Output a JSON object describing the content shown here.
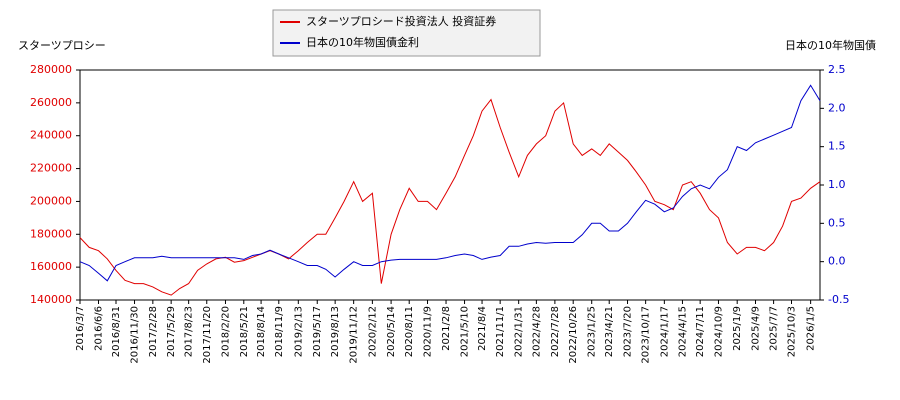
{
  "chart_data": {
    "type": "line",
    "y_label": "スターツプロシー",
    "y2_label": "日本の10年物国債",
    "x": [
      "2016/3/7",
      "2016/4/21",
      "2016/6/6",
      "2016/7/19",
      "2016/8/31",
      "2016/10/14",
      "2016/11/30",
      "2017/1/13",
      "2017/2/28",
      "2017/4/13",
      "2017/5/29",
      "2017/7/10",
      "2017/8/23",
      "2017/10/6",
      "2017/11/20",
      "2018/1/4",
      "2018/2/20",
      "2018/4/5",
      "2018/5/21",
      "2018/7/3",
      "2018/8/14",
      "2018/9/27",
      "2018/11/9",
      "2018/12/27",
      "2019/2/13",
      "2019/3/29",
      "2019/5/17",
      "2019/6/28",
      "2019/8/13",
      "2019/9/26",
      "2019/11/12",
      "2019/12/26",
      "2020/2/12",
      "2020/3/27",
      "2020/5/14",
      "2020/6/26",
      "2020/8/11",
      "2020/9/24",
      "2020/11/9",
      "2020/12/23",
      "2021/2/8",
      "2021/3/25",
      "2021/5/10",
      "2021/6/22",
      "2021/8/4",
      "2021/9/17",
      "2021/11/1",
      "2021/12/15",
      "2022/1/31",
      "2022/3/15",
      "2022/4/28",
      "2022/6/13",
      "2022/7/28",
      "2022/9/9",
      "2022/10/26",
      "2022/12/9",
      "2023/1/25",
      "2023/3/8",
      "2023/4/21",
      "2023/6/5",
      "2023/7/20",
      "2023/9/1",
      "2023/10/17",
      "2023/12/1",
      "2024/1/17",
      "2024/3/1",
      "2024/4/15",
      "2024/5/28",
      "2024/7/11",
      "2024/8/26",
      "2024/10/9",
      "2024/11/22",
      "2025/1/9",
      "2025/2/24",
      "2025/4/9",
      "2025/5/23",
      "2025/7/7",
      "2025/8/20",
      "2025/10/3",
      "2025/11/18",
      "2026/1/5",
      "2026/2/20"
    ],
    "series": [
      {
        "name": "スターツプロシード投資法人 投資証券",
        "color": "#e00000",
        "values": [
          178000,
          172000,
          170000,
          165000,
          158000,
          152000,
          150000,
          150000,
          148000,
          145000,
          143000,
          147000,
          150000,
          158000,
          162000,
          165000,
          166000,
          163000,
          164000,
          166000,
          168000,
          170000,
          168000,
          165000,
          170000,
          175000,
          180000,
          180000,
          190000,
          200000,
          212000,
          200000,
          205000,
          150000,
          180000,
          195000,
          208000,
          200000,
          200000,
          195000,
          205000,
          215000,
          228000,
          240000,
          255000,
          262000,
          245000,
          230000,
          215000,
          228000,
          235000,
          240000,
          255000,
          260000,
          235000,
          228000,
          232000,
          228000,
          235000,
          230000,
          225000,
          218000,
          210000,
          200000,
          198000,
          195000,
          210000,
          212000,
          205000,
          195000,
          190000,
          175000,
          168000,
          172000,
          172000,
          170000,
          175000,
          185000,
          200000,
          202000,
          208000,
          212000
        ]
      },
      {
        "name": "日本の10年物国債金利",
        "color": "#0000cc",
        "axis": "y2",
        "values": [
          0.0,
          -0.05,
          -0.15,
          -0.25,
          -0.05,
          0.0,
          0.05,
          0.05,
          0.05,
          0.07,
          0.05,
          0.05,
          0.05,
          0.05,
          0.05,
          0.05,
          0.05,
          0.05,
          0.03,
          0.08,
          0.1,
          0.15,
          0.1,
          0.05,
          0.0,
          -0.05,
          -0.05,
          -0.1,
          -0.2,
          -0.1,
          0.0,
          -0.05,
          -0.05,
          0.0,
          0.02,
          0.03,
          0.03,
          0.03,
          0.03,
          0.03,
          0.05,
          0.08,
          0.1,
          0.08,
          0.03,
          0.06,
          0.08,
          0.2,
          0.2,
          0.23,
          0.25,
          0.24,
          0.25,
          0.25,
          0.25,
          0.35,
          0.5,
          0.5,
          0.4,
          0.4,
          0.5,
          0.65,
          0.8,
          0.75,
          0.65,
          0.7,
          0.85,
          0.95,
          1.0,
          0.95,
          1.1,
          1.2,
          1.5,
          1.45,
          1.55,
          1.6,
          1.65,
          1.7,
          1.75,
          2.1,
          2.3,
          2.1
        ]
      }
    ],
    "xlim": [
      "2016/3/7",
      "2026/2/20"
    ],
    "xticks": [
      "2016/3/7",
      "2016/6/6",
      "2016/8/31",
      "2016/11/30",
      "2017/2/28",
      "2017/5/29",
      "2017/8/23",
      "2017/11/20",
      "2018/2/20",
      "2018/5/21",
      "2018/8/14",
      "2018/11/9",
      "2019/2/13",
      "2019/5/17",
      "2019/8/13",
      "2019/11/12",
      "2020/2/12",
      "2020/5/14",
      "2020/8/11",
      "2020/11/9",
      "2021/2/8",
      "2021/5/10",
      "2021/8/4",
      "2021/11/1",
      "2022/1/31",
      "2022/4/28",
      "2022/7/28",
      "2022/10/26",
      "2023/1/25",
      "2023/4/21",
      "2023/7/20",
      "2023/10/17",
      "2024/1/17",
      "2024/4/15",
      "2024/7/11",
      "2024/10/9",
      "2025/1/9",
      "2025/4/9",
      "2025/7/7",
      "2025/10/3",
      "2026/1/5"
    ],
    "ylim": [
      140000,
      280000
    ],
    "yticks": [
      140000,
      160000,
      180000,
      200000,
      220000,
      240000,
      260000,
      280000
    ],
    "y2lim": [
      -0.5,
      2.5
    ],
    "y2ticks": [
      -0.5,
      {
        "value": 0,
        "label": "0.0"
      },
      0.5,
      {
        "value": 1,
        "label": "1.0"
      },
      1.5,
      {
        "value": 2,
        "label": "2.0"
      },
      2.5
    ],
    "legend": "top"
  }
}
